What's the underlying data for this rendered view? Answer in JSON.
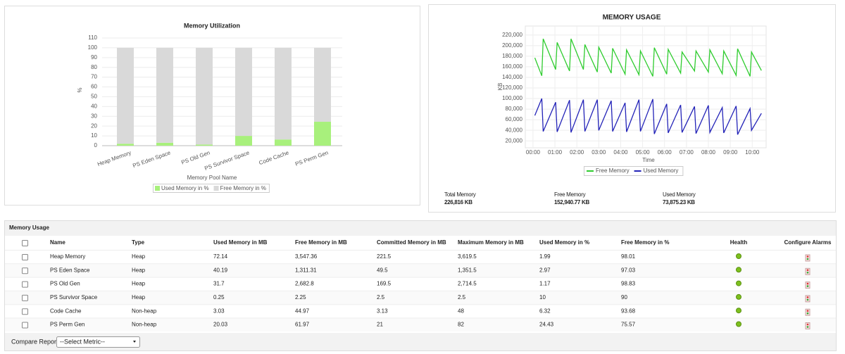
{
  "chart_data": [
    {
      "type": "bar",
      "stacked": true,
      "title": "Memory Utilization",
      "x_label": "Memory Pool Name",
      "y_label": "%",
      "categories": [
        "Heap Memory",
        "PS Eden Space",
        "PS Old Gen",
        "PS Survivor Space",
        "Code Cache",
        "PS Perm Gen"
      ],
      "series": [
        {
          "name": "Used Memory in %",
          "color": "#a8f07c",
          "values": [
            1.99,
            2.97,
            1.17,
            10,
            6.32,
            24.43
          ]
        },
        {
          "name": "Free Memory in %",
          "color": "#d9d9d9",
          "values": [
            98.01,
            97.03,
            98.83,
            90,
            93.68,
            75.57
          ]
        }
      ],
      "ylim": [
        0,
        110
      ],
      "yticks": [
        0,
        10,
        20,
        30,
        40,
        50,
        60,
        70,
        80,
        90,
        100,
        110
      ],
      "grid": true
    },
    {
      "type": "line",
      "title": "MEMORY USAGE",
      "x_label": "Time",
      "y_label": "KB",
      "x": [
        5,
        24,
        28,
        62,
        66,
        100,
        104,
        138,
        142,
        176,
        180,
        214,
        218,
        252,
        256,
        290,
        294,
        328,
        332,
        366,
        370,
        404,
        408,
        442,
        446,
        480,
        484,
        518,
        522,
        556,
        560,
        594,
        598,
        625
      ],
      "series": [
        {
          "name": "Free Memory",
          "color": "#2ecc2e",
          "values": [
            177000,
            143000,
            213000,
            155000,
            206000,
            152000,
            213000,
            155000,
            202000,
            150000,
            197000,
            148000,
            195000,
            146000,
            192000,
            145000,
            190000,
            142000,
            196000,
            146000,
            193000,
            148000,
            188000,
            152000,
            190000,
            150000,
            192000,
            147000,
            190000,
            144000,
            194000,
            142000,
            188000,
            153000
          ]
        },
        {
          "name": "Used Memory",
          "color": "#2323b8",
          "values": [
            68000,
            100000,
            38000,
            93000,
            37000,
            97000,
            36000,
            98000,
            38000,
            98000,
            40000,
            96000,
            38000,
            92000,
            37000,
            98000,
            38000,
            99000,
            33000,
            90000,
            35000,
            88000,
            36000,
            85000,
            34000,
            87000,
            36000,
            83000,
            35000,
            86000,
            32000,
            81000,
            40000,
            72000
          ]
        }
      ],
      "xlim": [
        -21,
        638
      ],
      "xticks": [
        {
          "value": 0,
          "label": "00:00"
        },
        {
          "value": 60,
          "label": "01:00"
        },
        {
          "value": 120,
          "label": "02:00"
        },
        {
          "value": 180,
          "label": "03:00"
        },
        {
          "value": 240,
          "label": "04:00"
        },
        {
          "value": 300,
          "label": "05:00"
        },
        {
          "value": 360,
          "label": "06:00"
        },
        {
          "value": 420,
          "label": "07:00"
        },
        {
          "value": 480,
          "label": "08:00"
        },
        {
          "value": 540,
          "label": "09:00"
        },
        {
          "value": 600,
          "label": "10:00"
        }
      ],
      "ylim": [
        7000,
        237000
      ],
      "yticks": [
        {
          "value": 20000,
          "label": "20,000"
        },
        {
          "value": 40000,
          "label": "40,000"
        },
        {
          "value": 60000,
          "label": "60,000"
        },
        {
          "value": 80000,
          "label": "80,000"
        },
        {
          "value": 100000,
          "label": "100,000"
        },
        {
          "value": 120000,
          "label": "120,000"
        },
        {
          "value": 140000,
          "label": "140,000"
        },
        {
          "value": 160000,
          "label": "160,000"
        },
        {
          "value": 180000,
          "label": "180,000"
        },
        {
          "value": 200000,
          "label": "200,000"
        },
        {
          "value": 220000,
          "label": "220,000"
        }
      ],
      "grid": true
    }
  ],
  "summary": [
    {
      "label": "Total Memory",
      "value": "226,816 KB"
    },
    {
      "label": "Free Memory",
      "value": "152,940.77 KB"
    },
    {
      "label": "Used Memory",
      "value": "73,875.23 KB"
    }
  ],
  "table": {
    "title": "Memory Usage",
    "columns": [
      "Name",
      "Type",
      "Used Memory in MB",
      "Free Memory in MB",
      "Committed Memory in MB",
      "Maximum Memory in MB",
      "Used Memory in %",
      "Free Memory in %",
      "Health",
      "Configure Alarms"
    ],
    "rows": [
      [
        "Heap Memory",
        "Heap",
        "72.14",
        "3,547.36",
        "221.5",
        "3,619.5",
        "1.99",
        "98.01"
      ],
      [
        "PS Eden Space",
        "Heap",
        "40.19",
        "1,311.31",
        "49.5",
        "1,351.5",
        "2.97",
        "97.03"
      ],
      [
        "PS Old Gen",
        "Heap",
        "31.7",
        "2,682.8",
        "169.5",
        "2,714.5",
        "1.17",
        "98.83"
      ],
      [
        "PS Survivor Space",
        "Heap",
        "0.25",
        "2.25",
        "2.5",
        "2.5",
        "10",
        "90"
      ],
      [
        "Code Cache",
        "Non-heap",
        "3.03",
        "44.97",
        "3.13",
        "48",
        "6.32",
        "93.68"
      ],
      [
        "PS Perm Gen",
        "Non-heap",
        "20.03",
        "61.97",
        "21",
        "82",
        "24.43",
        "75.57"
      ]
    ]
  },
  "footer": {
    "label": "Compare Reports",
    "select": "--Select Metric--"
  }
}
